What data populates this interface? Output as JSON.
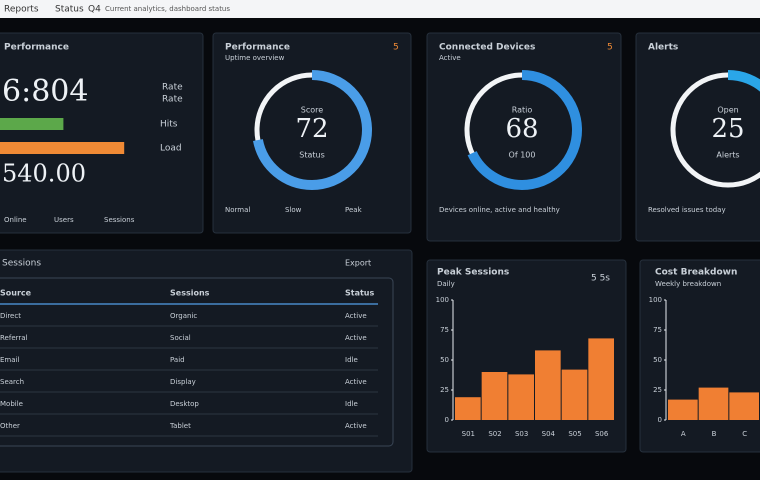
{
  "header": {
    "items": [
      "Reports",
      "Status",
      "Q4"
    ],
    "info": "Current analytics, dashboard status"
  },
  "metric": {
    "title": "Performance",
    "value": "6:804",
    "value2": "540.00",
    "side": [
      "Rate",
      "Rate"
    ],
    "bars": [
      {
        "label": "Hits",
        "value": 36,
        "color": "#5ca84a"
      },
      {
        "label": "Load",
        "value": 68,
        "color": "#f08a35"
      }
    ],
    "xlim": [
      0,
      100
    ],
    "footer": [
      "Online",
      "Users",
      "Sessions"
    ]
  },
  "gauges": [
    {
      "title": "Performance",
      "sub": "Uptime overview",
      "badge": "5",
      "value": 72,
      "label": "Score",
      "caption": "Status",
      "color": "#4a9de8",
      "legend": [
        "Normal",
        "Slow",
        "Peak"
      ]
    },
    {
      "title": "Connected Devices",
      "sub": "Active",
      "badge": "5",
      "value": 68,
      "label": "Ratio",
      "caption": "Of 100",
      "color": "#2f8fe0",
      "legend": [
        "Devices online, active and healthy"
      ]
    },
    {
      "title": "Alerts",
      "sub": "",
      "badge": "",
      "value": 25,
      "label": "Open",
      "caption": "Alerts",
      "color": "#2aa6e8",
      "legend": [
        "Resolved issues today"
      ]
    }
  ],
  "table": {
    "title": "Sessions",
    "action": "Export",
    "columns": [
      "Source",
      "Sessions",
      "Status"
    ],
    "rows": [
      [
        "Direct",
        "Organic",
        "Active"
      ],
      [
        "Referral",
        "Social",
        "Active"
      ],
      [
        "Email",
        "Paid",
        "Idle"
      ],
      [
        "Search",
        "Display",
        "Active"
      ],
      [
        "Mobile",
        "Desktop",
        "Idle"
      ],
      [
        "Other",
        "Tablet",
        "Active"
      ]
    ]
  },
  "chart_data": [
    {
      "type": "bar",
      "title": "Peak Sessions",
      "subtitle": "Daily",
      "badge": "5 5s",
      "categories": [
        "S01",
        "S02",
        "S03",
        "S04",
        "S05",
        "S06"
      ],
      "values": [
        19,
        40,
        38,
        58,
        42,
        68
      ],
      "color": "#f07f33",
      "ylim": [
        0,
        100
      ],
      "yticks": [
        0,
        25,
        50,
        75,
        100
      ]
    },
    {
      "type": "bar",
      "title": "Cost Breakdown",
      "subtitle": "Weekly breakdown",
      "categories": [
        "A",
        "B",
        "C"
      ],
      "values": [
        17,
        27,
        23
      ],
      "color": "#f07f33",
      "ylim": [
        0,
        100
      ],
      "yticks": [
        0,
        25,
        50,
        75,
        100
      ]
    }
  ]
}
